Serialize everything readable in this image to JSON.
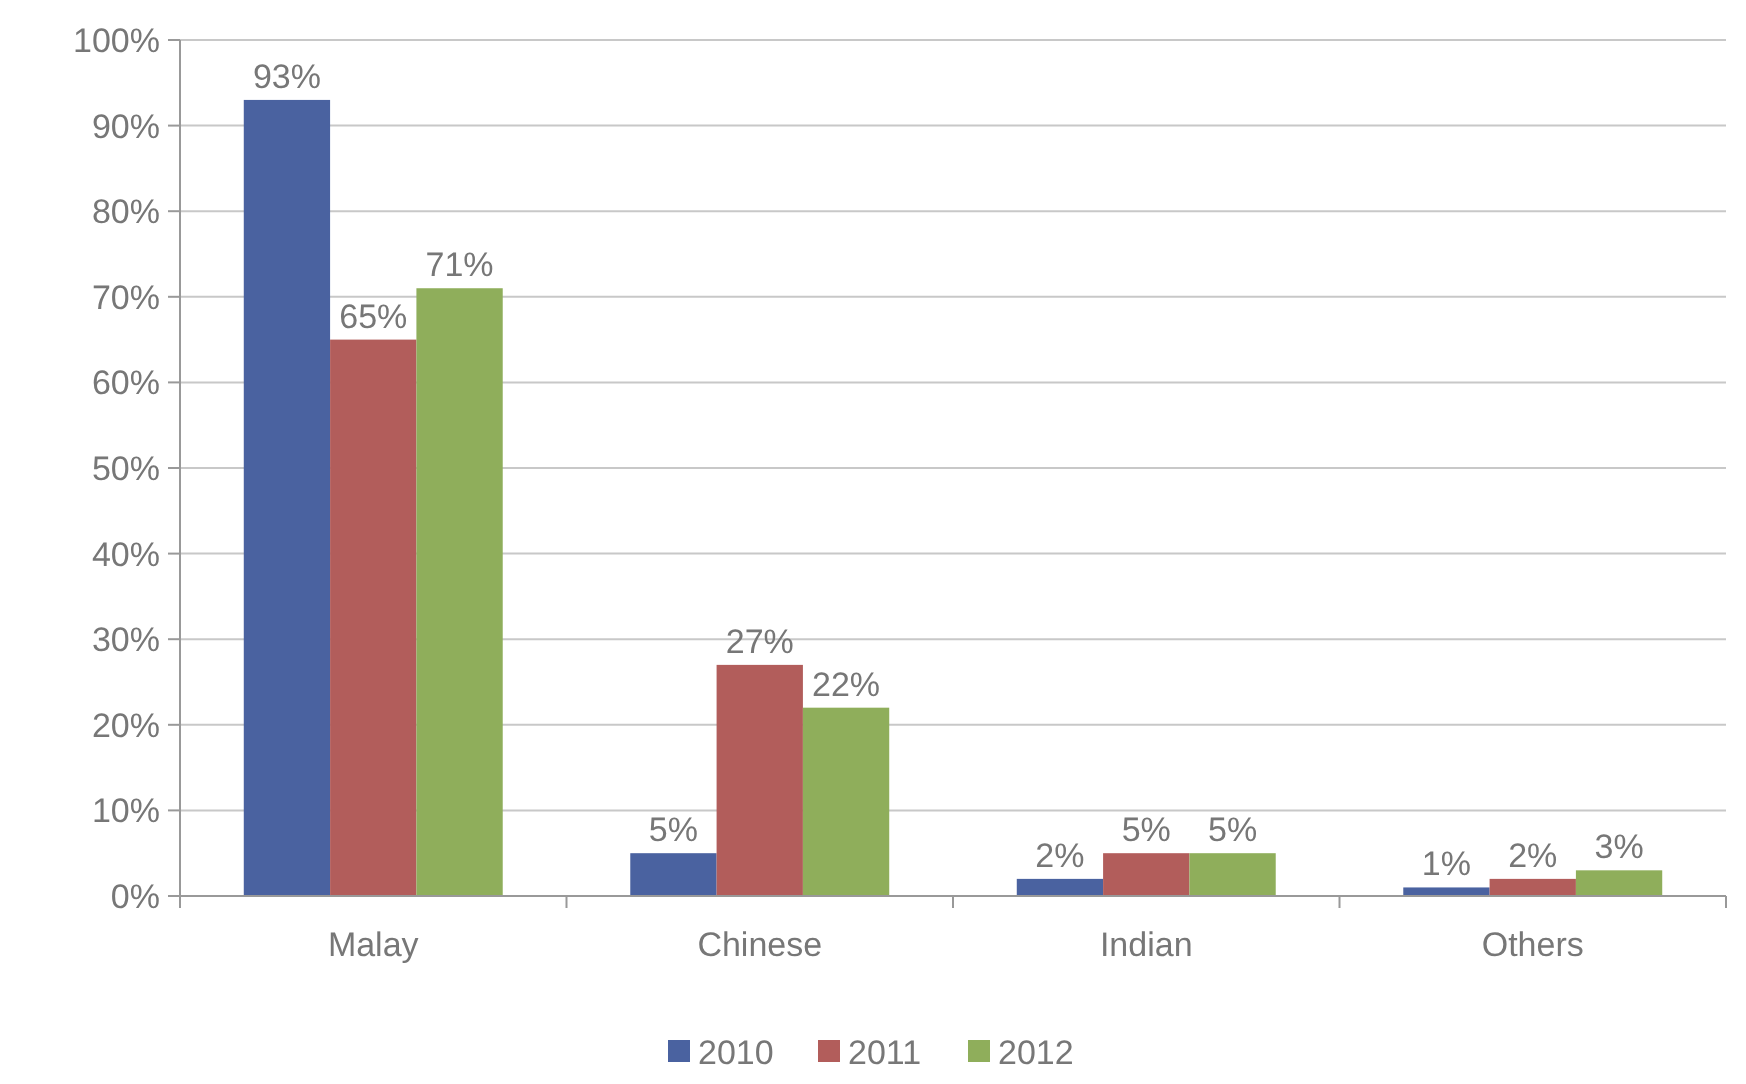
{
  "chart_data": {
    "type": "bar",
    "categories": [
      "Malay",
      "Chinese",
      "Indian",
      "Others"
    ],
    "series": [
      {
        "name": "2010",
        "color": "#4a62a0",
        "values": [
          93,
          5,
          2,
          1
        ],
        "value_labels": [
          "93%",
          "5%",
          "2%",
          "1%"
        ]
      },
      {
        "name": "2011",
        "color": "#b25d5b",
        "values": [
          65,
          27,
          5,
          2
        ],
        "value_labels": [
          "65%",
          "27%",
          "5%",
          "2%"
        ]
      },
      {
        "name": "2012",
        "color": "#8fae5b",
        "values": [
          71,
          22,
          5,
          3
        ],
        "value_labels": [
          "71%",
          "22%",
          "5%",
          "3%"
        ]
      }
    ],
    "ylim": [
      0,
      100
    ],
    "yticks": [
      {
        "value": 0,
        "label": "0%"
      },
      {
        "value": 10,
        "label": "10%"
      },
      {
        "value": 20,
        "label": "20%"
      },
      {
        "value": 30,
        "label": "30%"
      },
      {
        "value": 40,
        "label": "40%"
      },
      {
        "value": 50,
        "label": "50%"
      },
      {
        "value": 60,
        "label": "60%"
      },
      {
        "value": 70,
        "label": "70%"
      },
      {
        "value": 80,
        "label": "80%"
      },
      {
        "value": 90,
        "label": "90%"
      },
      {
        "value": 100,
        "label": "100%"
      }
    ],
    "grid": "y",
    "legend": "bottom"
  }
}
